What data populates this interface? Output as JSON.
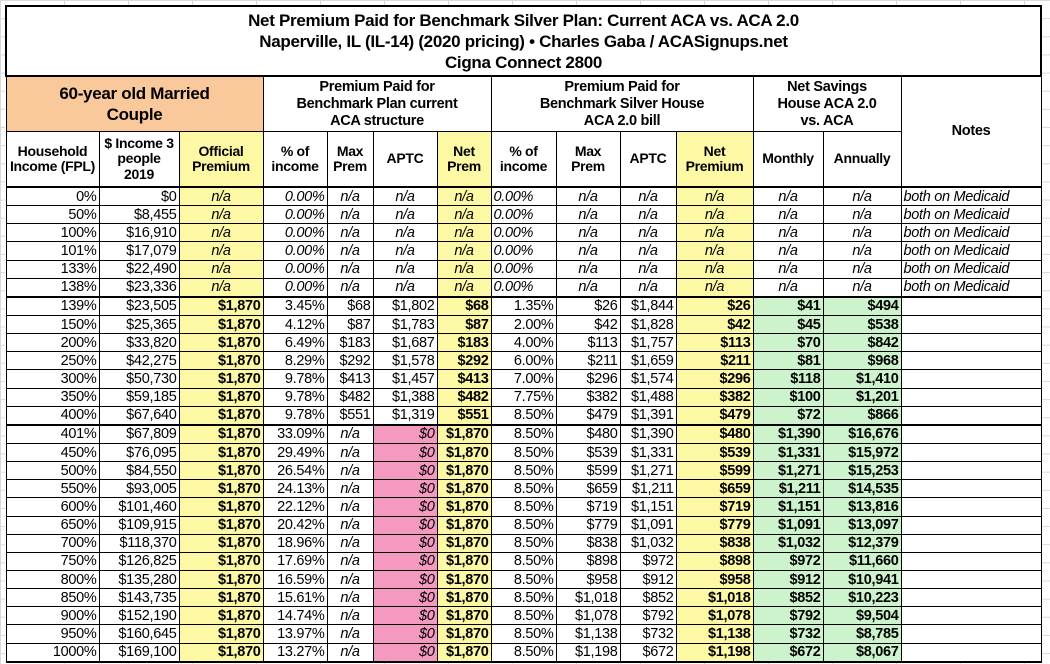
{
  "title": {
    "line1": "Net Premium Paid for Benchmark Silver Plan: Current ACA vs. ACA 2.0",
    "line2": "Naperville, IL (IL-14) (2020 pricing) • Charles Gaba / ACASignups.net",
    "line3": "Cigna Connect 2800"
  },
  "groups": {
    "couple": "60-year old Married Couple",
    "current": "Premium Paid for Benchmark Plan current ACA structure",
    "house": "Premium Paid for Benchmark Silver House ACA 2.0 bill",
    "savings": "Net Savings House ACA 2.0 vs. ACA",
    "notes": "Notes"
  },
  "columns": [
    "Household Income (FPL)",
    "$ Income 3 people 2019",
    "Official Premium",
    "% of income",
    "Max Prem",
    "APTC",
    "Net Prem",
    "% of income",
    "Max Prem",
    "APTC",
    "Net Premium",
    "Monthly",
    "Annually"
  ],
  "colors": {
    "yellow": "#fdf8a3",
    "orange": "#f9c89b",
    "pink": "#f49ac1",
    "green": "#cdf3cd"
  },
  "rows": [
    [
      "0%",
      "$0",
      "n/a",
      "0.00%",
      "n/a",
      "n/a",
      "n/a",
      "0.00%",
      "n/a",
      "n/a",
      "n/a",
      "n/a",
      "n/a",
      "both on Medicaid"
    ],
    [
      "50%",
      "$8,455",
      "n/a",
      "0.00%",
      "n/a",
      "n/a",
      "n/a",
      "0.00%",
      "n/a",
      "n/a",
      "n/a",
      "n/a",
      "n/a",
      "both on Medicaid"
    ],
    [
      "100%",
      "$16,910",
      "n/a",
      "0.00%",
      "n/a",
      "n/a",
      "n/a",
      "0.00%",
      "n/a",
      "n/a",
      "n/a",
      "n/a",
      "n/a",
      "both on Medicaid"
    ],
    [
      "101%",
      "$17,079",
      "n/a",
      "0.00%",
      "n/a",
      "n/a",
      "n/a",
      "0.00%",
      "n/a",
      "n/a",
      "n/a",
      "n/a",
      "n/a",
      "both on Medicaid"
    ],
    [
      "133%",
      "$22,490",
      "n/a",
      "0.00%",
      "n/a",
      "n/a",
      "n/a",
      "0.00%",
      "n/a",
      "n/a",
      "n/a",
      "n/a",
      "n/a",
      "both on Medicaid"
    ],
    [
      "138%",
      "$23,336",
      "n/a",
      "0.00%",
      "n/a",
      "n/a",
      "n/a",
      "0.00%",
      "n/a",
      "n/a",
      "n/a",
      "n/a",
      "n/a",
      "both on Medicaid"
    ],
    [
      "139%",
      "$23,505",
      "$1,870",
      "3.45%",
      "$68",
      "$1,802",
      "$68",
      "1.35%",
      "$26",
      "$1,844",
      "$26",
      "$41",
      "$494",
      ""
    ],
    [
      "150%",
      "$25,365",
      "$1,870",
      "4.12%",
      "$87",
      "$1,783",
      "$87",
      "2.00%",
      "$42",
      "$1,828",
      "$42",
      "$45",
      "$538",
      ""
    ],
    [
      "200%",
      "$33,820",
      "$1,870",
      "6.49%",
      "$183",
      "$1,687",
      "$183",
      "4.00%",
      "$113",
      "$1,757",
      "$113",
      "$70",
      "$842",
      ""
    ],
    [
      "250%",
      "$42,275",
      "$1,870",
      "8.29%",
      "$292",
      "$1,578",
      "$292",
      "6.00%",
      "$211",
      "$1,659",
      "$211",
      "$81",
      "$968",
      ""
    ],
    [
      "300%",
      "$50,730",
      "$1,870",
      "9.78%",
      "$413",
      "$1,457",
      "$413",
      "7.00%",
      "$296",
      "$1,574",
      "$296",
      "$118",
      "$1,410",
      ""
    ],
    [
      "350%",
      "$59,185",
      "$1,870",
      "9.78%",
      "$482",
      "$1,388",
      "$482",
      "7.75%",
      "$382",
      "$1,488",
      "$382",
      "$100",
      "$1,201",
      ""
    ],
    [
      "400%",
      "$67,640",
      "$1,870",
      "9.78%",
      "$551",
      "$1,319",
      "$551",
      "8.50%",
      "$479",
      "$1,391",
      "$479",
      "$72",
      "$866",
      ""
    ],
    [
      "401%",
      "$67,809",
      "$1,870",
      "33.09%",
      "n/a",
      "$0",
      "$1,870",
      "8.50%",
      "$480",
      "$1,390",
      "$480",
      "$1,390",
      "$16,676",
      ""
    ],
    [
      "450%",
      "$76,095",
      "$1,870",
      "29.49%",
      "n/a",
      "$0",
      "$1,870",
      "8.50%",
      "$539",
      "$1,331",
      "$539",
      "$1,331",
      "$15,972",
      ""
    ],
    [
      "500%",
      "$84,550",
      "$1,870",
      "26.54%",
      "n/a",
      "$0",
      "$1,870",
      "8.50%",
      "$599",
      "$1,271",
      "$599",
      "$1,271",
      "$15,253",
      ""
    ],
    [
      "550%",
      "$93,005",
      "$1,870",
      "24.13%",
      "n/a",
      "$0",
      "$1,870",
      "8.50%",
      "$659",
      "$1,211",
      "$659",
      "$1,211",
      "$14,535",
      ""
    ],
    [
      "600%",
      "$101,460",
      "$1,870",
      "22.12%",
      "n/a",
      "$0",
      "$1,870",
      "8.50%",
      "$719",
      "$1,151",
      "$719",
      "$1,151",
      "$13,816",
      ""
    ],
    [
      "650%",
      "$109,915",
      "$1,870",
      "20.42%",
      "n/a",
      "$0",
      "$1,870",
      "8.50%",
      "$779",
      "$1,091",
      "$779",
      "$1,091",
      "$13,097",
      ""
    ],
    [
      "700%",
      "$118,370",
      "$1,870",
      "18.96%",
      "n/a",
      "$0",
      "$1,870",
      "8.50%",
      "$838",
      "$1,032",
      "$838",
      "$1,032",
      "$12,379",
      ""
    ],
    [
      "750%",
      "$126,825",
      "$1,870",
      "17.69%",
      "n/a",
      "$0",
      "$1,870",
      "8.50%",
      "$898",
      "$972",
      "$898",
      "$972",
      "$11,660",
      ""
    ],
    [
      "800%",
      "$135,280",
      "$1,870",
      "16.59%",
      "n/a",
      "$0",
      "$1,870",
      "8.50%",
      "$958",
      "$912",
      "$958",
      "$912",
      "$10,941",
      ""
    ],
    [
      "850%",
      "$143,735",
      "$1,870",
      "15.61%",
      "n/a",
      "$0",
      "$1,870",
      "8.50%",
      "$1,018",
      "$852",
      "$1,018",
      "$852",
      "$10,223",
      ""
    ],
    [
      "900%",
      "$152,190",
      "$1,870",
      "14.74%",
      "n/a",
      "$0",
      "$1,870",
      "8.50%",
      "$1,078",
      "$792",
      "$1,078",
      "$792",
      "$9,504",
      ""
    ],
    [
      "950%",
      "$160,645",
      "$1,870",
      "13.97%",
      "n/a",
      "$0",
      "$1,870",
      "8.50%",
      "$1,138",
      "$732",
      "$1,138",
      "$732",
      "$8,785",
      ""
    ],
    [
      "1000%",
      "$169,100",
      "$1,870",
      "13.27%",
      "n/a",
      "$0",
      "$1,870",
      "8.50%",
      "$1,198",
      "$672",
      "$1,198",
      "$672",
      "$8,067",
      ""
    ]
  ]
}
